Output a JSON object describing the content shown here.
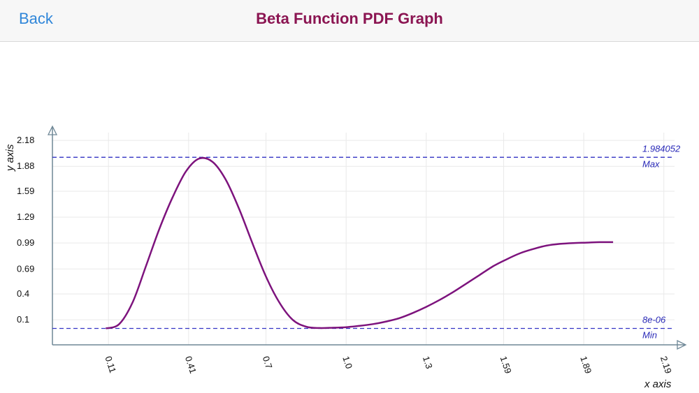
{
  "nav": {
    "back_label": "Back",
    "title": "Beta Function PDF Graph"
  },
  "chart_data": {
    "type": "line",
    "xlabel": "x axis",
    "ylabel": "y axis",
    "x_ticks": [
      "0.11",
      "0.41",
      "0.7",
      "1.0",
      "1.3",
      "1.59",
      "1.89",
      "2.19"
    ],
    "y_ticks": [
      "0.1",
      "0.4",
      "0.69",
      "0.99",
      "1.29",
      "1.59",
      "1.88",
      "2.18"
    ],
    "xlim": [
      -0.1,
      2.23
    ],
    "ylim": [
      -0.19,
      2.27
    ],
    "grid": true,
    "reference_lines": [
      {
        "label": "Max",
        "value_text": "1.984052",
        "value": 1.984052
      },
      {
        "label": "Min",
        "value_text": "8e-06",
        "value": 8e-06
      }
    ],
    "series": [
      {
        "color": "#7d137d",
        "x": [
          0.1,
          0.15,
          0.2,
          0.25,
          0.3,
          0.35,
          0.4,
          0.45,
          0.5,
          0.55,
          0.6,
          0.65,
          0.7,
          0.75,
          0.8,
          0.85,
          0.9,
          0.95,
          1.0,
          1.05,
          1.1,
          1.15,
          1.2,
          1.25,
          1.3,
          1.35,
          1.4,
          1.45,
          1.5,
          1.55,
          1.6,
          1.65,
          1.7,
          1.75,
          1.8,
          1.85,
          1.9,
          1.95,
          2.0
        ],
        "values": [
          0.0,
          0.05,
          0.3,
          0.72,
          1.15,
          1.52,
          1.82,
          1.97,
          1.93,
          1.72,
          1.38,
          0.98,
          0.6,
          0.3,
          0.1,
          0.02,
          0.005,
          0.008,
          0.015,
          0.03,
          0.05,
          0.08,
          0.12,
          0.18,
          0.25,
          0.33,
          0.42,
          0.52,
          0.62,
          0.72,
          0.8,
          0.87,
          0.92,
          0.96,
          0.98,
          0.99,
          0.995,
          1.0,
          1.0
        ]
      }
    ]
  }
}
